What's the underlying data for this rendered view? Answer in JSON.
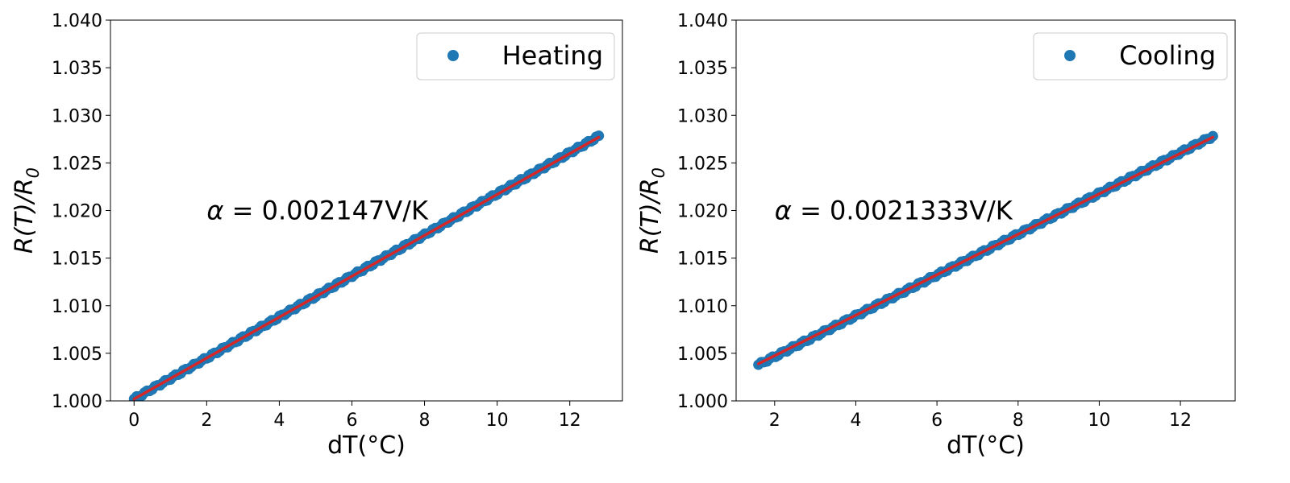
{
  "chart_data": [
    {
      "type": "scatter",
      "xlabel": "dT(°C)",
      "ylabel": "R(T)/R",
      "ylabel_subscript": "0",
      "xlim": [
        -0.65,
        13.45
      ],
      "ylim": [
        1.0,
        1.04
      ],
      "xticks": [
        0,
        2,
        4,
        6,
        8,
        10,
        12
      ],
      "yticks": [
        1.0,
        1.005,
        1.01,
        1.015,
        1.02,
        1.025,
        1.03,
        1.035,
        1.04
      ],
      "ytick_labels": [
        "1.000",
        "1.005",
        "1.010",
        "1.015",
        "1.020",
        "1.025",
        "1.030",
        "1.035",
        "1.040"
      ],
      "legend": {
        "label": "Heating",
        "location": "upper right",
        "marker_color": "#1f77b4"
      },
      "annotation": {
        "symbol": "α",
        "text": " = 0.002147V/K",
        "x": 2.0,
        "y": 1.02
      },
      "series": [
        {
          "name": "Heating",
          "style": "scatter",
          "color": "#1f77b4",
          "x_range": [
            0.0,
            12.8
          ],
          "y_range": [
            1.0002,
            1.0278
          ],
          "num_points": 180
        }
      ],
      "fit_line": {
        "color": "#d62728",
        "points": [
          [
            0.0,
            1.0002
          ],
          [
            12.8,
            1.0277
          ]
        ]
      },
      "grid": false
    },
    {
      "type": "scatter",
      "xlabel": "dT(°C)",
      "ylabel": "R(T)/R",
      "ylabel_subscript": "0",
      "xlim": [
        1.05,
        13.35
      ],
      "ylim": [
        1.0,
        1.04
      ],
      "xticks": [
        2,
        4,
        6,
        8,
        10,
        12
      ],
      "yticks": [
        1.0,
        1.005,
        1.01,
        1.015,
        1.02,
        1.025,
        1.03,
        1.035,
        1.04
      ],
      "ytick_labels": [
        "1.000",
        "1.005",
        "1.010",
        "1.015",
        "1.020",
        "1.025",
        "1.030",
        "1.035",
        "1.040"
      ],
      "legend": {
        "label": "Cooling",
        "location": "upper right",
        "marker_color": "#1f77b4"
      },
      "annotation": {
        "symbol": "α",
        "text": " = 0.0021333V/K",
        "x": 2.0,
        "y": 1.02
      },
      "series": [
        {
          "name": "Cooling",
          "style": "scatter",
          "color": "#1f77b4",
          "x_range": [
            1.6,
            12.8
          ],
          "y_range": [
            1.0038,
            1.0278
          ],
          "num_points": 160
        }
      ],
      "fit_line": {
        "color": "#d62728",
        "points": [
          [
            1.6,
            1.0039
          ],
          [
            12.8,
            1.0277
          ]
        ]
      },
      "grid": false
    }
  ]
}
